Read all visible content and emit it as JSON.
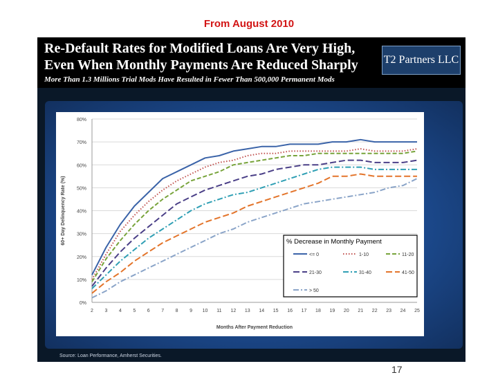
{
  "caption": "From August 2010",
  "header": {
    "title_line1": "Re-Default Rates for Modified Loans Are Very High,",
    "title_line2": "Even When Monthly Payments Are Reduced Sharply",
    "subtitle": "More Than 1.3 Millions Trial Mods Have Resulted in Fewer Than 500,000 Permanent Mods",
    "logo": "T2 Partners LLC"
  },
  "source": "Source:  Loan Performance, Amherst Securities.",
  "page_number": "17",
  "chart_data": {
    "type": "line",
    "title": "",
    "xlabel": "Months After Payment Reduction",
    "ylabel": "60+ Day Delinquency Rate (%)",
    "x": [
      2,
      3,
      4,
      5,
      6,
      7,
      8,
      9,
      10,
      11,
      12,
      13,
      14,
      15,
      16,
      17,
      18,
      19,
      20,
      21,
      22,
      23,
      24,
      25
    ],
    "ylim": [
      0,
      80
    ],
    "yticks": [
      "0%",
      "10%",
      "20%",
      "30%",
      "40%",
      "50%",
      "60%",
      "70%",
      "80%"
    ],
    "legend_title": "% Decrease in Monthly Payment",
    "legend_position": "bottom-right",
    "series": [
      {
        "name": "<= 0",
        "color": "#3a63a8",
        "dash": "solid",
        "values": [
          12,
          24,
          34,
          42,
          48,
          54,
          57,
          60,
          63,
          64,
          66,
          67,
          68,
          68,
          69,
          69,
          69,
          70,
          70,
          71,
          70,
          70,
          70,
          70
        ]
      },
      {
        "name": "1-10",
        "color": "#c0504d",
        "dash": "dot",
        "values": [
          10,
          21,
          31,
          38,
          44,
          49,
          53,
          56,
          59,
          61,
          62,
          64,
          65,
          65,
          66,
          66,
          66,
          66,
          66,
          67,
          66,
          66,
          66,
          67
        ]
      },
      {
        "name": "11-20",
        "color": "#77a33a",
        "dash": "dash",
        "values": [
          9,
          19,
          27,
          34,
          40,
          45,
          49,
          53,
          55,
          57,
          60,
          61,
          62,
          63,
          64,
          64,
          65,
          65,
          65,
          65,
          65,
          65,
          65,
          66
        ]
      },
      {
        "name": "21-30",
        "color": "#4a3f87",
        "dash": "longdash",
        "values": [
          7,
          15,
          22,
          28,
          33,
          38,
          43,
          46,
          49,
          51,
          53,
          55,
          56,
          58,
          59,
          60,
          60,
          61,
          62,
          62,
          61,
          61,
          61,
          62
        ]
      },
      {
        "name": "31-40",
        "color": "#2f9fb4",
        "dash": "dashdot",
        "values": [
          6,
          12,
          18,
          23,
          28,
          32,
          36,
          40,
          43,
          45,
          47,
          48,
          50,
          52,
          54,
          56,
          58,
          59,
          59,
          59,
          58,
          58,
          58,
          58
        ]
      },
      {
        "name": "41-50",
        "color": "#e3742a",
        "dash": "longdash",
        "values": [
          4,
          9,
          13,
          18,
          22,
          26,
          29,
          32,
          35,
          37,
          39,
          42,
          44,
          46,
          48,
          50,
          52,
          55,
          55,
          56,
          55,
          55,
          55,
          55
        ]
      },
      {
        "name": "> 50",
        "color": "#8aa4c8",
        "dash": "dashdot",
        "values": [
          2,
          5,
          9,
          12,
          15,
          18,
          21,
          24,
          27,
          30,
          32,
          35,
          37,
          39,
          41,
          43,
          44,
          45,
          46,
          47,
          48,
          50,
          51,
          54
        ]
      }
    ]
  }
}
